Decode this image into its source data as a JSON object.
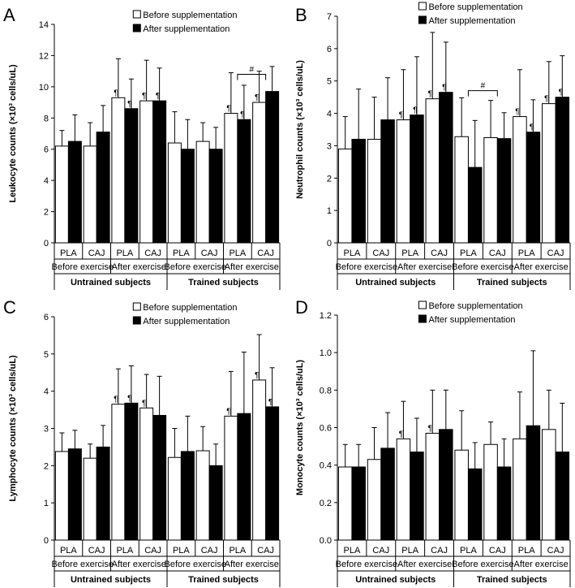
{
  "chart_data": [
    {
      "panel": "A",
      "type": "bar",
      "ylabel": "Leukocyte counts (×10³ cells/uL)",
      "ylim": [
        0,
        14
      ],
      "yticks": [
        "0",
        "2",
        "4",
        "6",
        "8",
        "10",
        "12",
        "14"
      ],
      "legend": [
        "Before supplementation",
        "After supplementation"
      ],
      "categories": [
        "PLA",
        "CAJ",
        "PLA",
        "CAJ",
        "PLA",
        "CAJ",
        "PLA",
        "CAJ"
      ],
      "exercise_labels": [
        "Before exercise",
        "After exercise",
        "Before exercise",
        "After exercise"
      ],
      "subject_labels": [
        "Untrained subjects",
        "Trained subjects"
      ],
      "series": [
        {
          "name": "Before supplementation",
          "color": "#ffffff",
          "values": [
            6.2,
            6.2,
            9.3,
            9.1,
            6.4,
            6.5,
            8.3,
            9.0
          ],
          "errors": [
            1.0,
            1.5,
            2.5,
            2.6,
            2.0,
            1.2,
            2.6,
            2.0
          ],
          "marks": [
            "",
            "",
            "¶",
            "¶",
            "",
            "",
            "¶",
            "¶"
          ]
        },
        {
          "name": "After supplementation",
          "color": "#000000",
          "values": [
            6.5,
            7.1,
            8.6,
            9.1,
            6.0,
            6.0,
            7.9,
            9.7
          ],
          "errors": [
            1.7,
            1.7,
            1.9,
            2.1,
            1.9,
            1.4,
            2.2,
            1.6
          ],
          "marks": [
            "",
            "",
            "¶",
            "¶",
            "",
            "",
            "¶",
            ""
          ]
        }
      ],
      "significance": {
        "label": "#",
        "from": 6,
        "to": 7,
        "y": 10.8
      }
    },
    {
      "panel": "B",
      "type": "bar",
      "ylabel": "Neutrophil counts (×10³ cells/uL)",
      "ylim": [
        0,
        7
      ],
      "yticks": [
        "0",
        "1",
        "2",
        "3",
        "4",
        "5",
        "6",
        "7"
      ],
      "legend": [
        "Before supplementation",
        "After supplementation"
      ],
      "categories": [
        "PLA",
        "CAJ",
        "PLA",
        "CAJ",
        "PLA",
        "CAJ",
        "PLA",
        "CAJ"
      ],
      "exercise_labels": [
        "Before exercise",
        "After exercise",
        "Before exercise",
        "After exercise"
      ],
      "subject_labels": [
        "Untrained subjects",
        "Trained subjects"
      ],
      "series": [
        {
          "name": "Before supplementation",
          "color": "#ffffff",
          "values": [
            2.9,
            3.2,
            3.8,
            4.45,
            3.28,
            3.25,
            3.9,
            4.3
          ],
          "errors": [
            1.0,
            1.3,
            1.55,
            2.05,
            1.2,
            1.15,
            1.45,
            1.3
          ],
          "marks": [
            "",
            "",
            "¶",
            "¶",
            "",
            "",
            "¶",
            "¶"
          ]
        },
        {
          "name": "After supplementation",
          "color": "#000000",
          "values": [
            3.2,
            3.8,
            3.95,
            4.65,
            2.33,
            3.22,
            3.42,
            4.5
          ],
          "errors": [
            1.55,
            1.3,
            1.8,
            1.55,
            1.45,
            0.8,
            1.0,
            1.28
          ],
          "marks": [
            "",
            "",
            "¶",
            "¶",
            "",
            "",
            "¶",
            "¶"
          ]
        }
      ],
      "significance": {
        "label": "#",
        "from": 4,
        "to": 5,
        "y": 4.7
      }
    },
    {
      "panel": "C",
      "type": "bar",
      "ylabel": "Lymphocyte counts (×10³ cells/uL)",
      "ylim": [
        0,
        6
      ],
      "yticks": [
        "0",
        "1",
        "2",
        "3",
        "4",
        "5",
        "6"
      ],
      "legend": [
        "Before supplementation",
        "After supplementation"
      ],
      "categories": [
        "PLA",
        "CAJ",
        "PLA",
        "CAJ",
        "PLA",
        "CAJ",
        "PLA",
        "CAJ"
      ],
      "exercise_labels": [
        "Before exercise",
        "After exercise",
        "Before exercise",
        "After exercise"
      ],
      "subject_labels": [
        "Untrained subjects",
        "Trained subjects"
      ],
      "series": [
        {
          "name": "Before supplementation",
          "color": "#ffffff",
          "values": [
            2.38,
            2.2,
            3.65,
            3.55,
            2.22,
            2.4,
            3.33,
            4.3
          ],
          "errors": [
            0.5,
            0.38,
            0.95,
            0.9,
            0.78,
            0.65,
            1.2,
            1.22
          ],
          "marks": [
            "",
            "",
            "¶",
            "¶",
            "",
            "",
            "¶",
            "¶"
          ]
        },
        {
          "name": "After supplementation",
          "color": "#000000",
          "values": [
            2.45,
            2.5,
            3.68,
            3.35,
            2.38,
            2.0,
            3.4,
            3.58
          ],
          "errors": [
            0.5,
            0.58,
            1.0,
            1.05,
            0.95,
            0.58,
            1.65,
            1.05
          ],
          "marks": [
            "",
            "",
            "¶",
            "",
            "",
            "",
            "",
            "¶"
          ]
        }
      ]
    },
    {
      "panel": "D",
      "type": "bar",
      "ylabel": "Monocyte counts (×10³ cells/uL)",
      "ylim": [
        0,
        1.2
      ],
      "yticks": [
        "0.0",
        "0.2",
        "0.4",
        "0.6",
        "0.8",
        "1.0",
        "1.2"
      ],
      "legend": [
        "Before supplementation",
        "After supplementation"
      ],
      "categories": [
        "PLA",
        "CAJ",
        "PLA",
        "CAJ",
        "PLA",
        "CAJ",
        "PLA",
        "CAJ"
      ],
      "exercise_labels": [
        "Before exercise",
        "After exercise",
        "Before exercise",
        "After exercise"
      ],
      "subject_labels": [
        "Untrained subjects",
        "Trained subjects"
      ],
      "series": [
        {
          "name": "Before supplementation",
          "color": "#ffffff",
          "values": [
            0.39,
            0.43,
            0.54,
            0.57,
            0.48,
            0.51,
            0.54,
            0.59
          ],
          "errors": [
            0.12,
            0.17,
            0.2,
            0.23,
            0.21,
            0.12,
            0.25,
            0.21
          ],
          "marks": [
            "",
            "",
            "¶",
            "¶",
            "",
            "",
            "",
            ""
          ]
        },
        {
          "name": "After supplementation",
          "color": "#000000",
          "values": [
            0.39,
            0.49,
            0.47,
            0.59,
            0.38,
            0.39,
            0.61,
            0.47
          ],
          "errors": [
            0.12,
            0.19,
            0.18,
            0.21,
            0.14,
            0.15,
            0.4,
            0.26
          ],
          "marks": [
            "",
            "",
            "",
            "",
            "",
            "",
            "",
            ""
          ]
        }
      ]
    }
  ]
}
